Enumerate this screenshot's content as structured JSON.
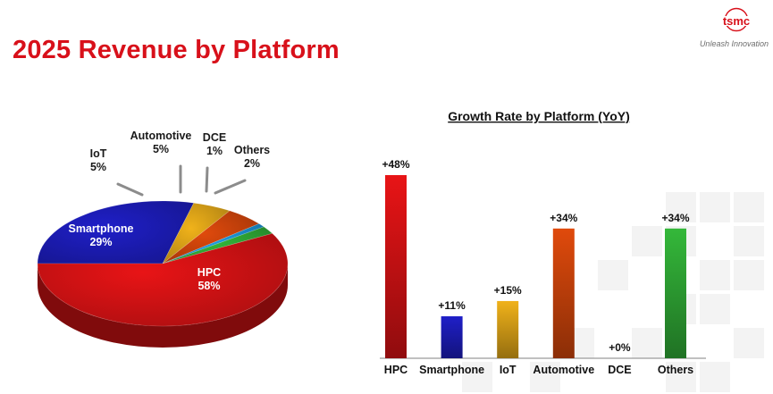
{
  "header": {
    "title": "2025 Revenue by Platform",
    "logo_text": "tsmc",
    "tagline": "Unleash Innovation"
  },
  "colors": {
    "title_red": "#d8101a",
    "HPC": "#e81416",
    "Smartphone": "#1f1fc8",
    "IoT": "#f0b21a",
    "Automotive": "#e04a0c",
    "DCE": "#1ea0e6",
    "Others": "#34b83a"
  },
  "chart_data": [
    {
      "type": "pie",
      "title": "",
      "slices": [
        {
          "label": "HPC",
          "value_label": "58%",
          "value": 58
        },
        {
          "label": "Smartphone",
          "value_label": "29%",
          "value": 29
        },
        {
          "label": "IoT",
          "value_label": "5%",
          "value": 5
        },
        {
          "label": "Automotive",
          "value_label": "5%",
          "value": 5
        },
        {
          "label": "DCE",
          "value_label": "1%",
          "value": 1
        },
        {
          "label": "Others",
          "value_label": "2%",
          "value": 2
        }
      ]
    },
    {
      "type": "bar",
      "title": "Growth Rate by Platform (YoY)",
      "categories": [
        "HPC",
        "Smartphone",
        "IoT",
        "Automotive",
        "DCE",
        "Others"
      ],
      "values": [
        48,
        11,
        15,
        34,
        0,
        34
      ],
      "value_labels": [
        "+48%",
        "+11%",
        "+15%",
        "+34%",
        "+0%",
        "+34%"
      ],
      "ylim": [
        0,
        48
      ],
      "grid": false
    }
  ]
}
